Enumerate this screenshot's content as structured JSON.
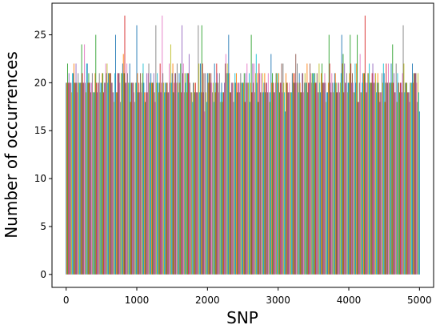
{
  "chart_data": {
    "type": "bar",
    "xlabel": "SNP",
    "ylabel": "Number of occurrences",
    "xlim": [
      -200,
      5200
    ],
    "ylim": [
      -1.35,
      28.3
    ],
    "xticks": [
      0,
      1000,
      2000,
      3000,
      4000,
      5000
    ],
    "yticks": [
      0,
      5,
      10,
      15,
      20,
      25
    ],
    "grid": false,
    "x_range": [
      0,
      5000
    ],
    "typical_value_range": [
      17,
      23
    ],
    "approx_mean": 20,
    "peaks": [
      {
        "x": 830,
        "y": 27
      },
      {
        "x": 1360,
        "y": 27
      },
      {
        "x": 4230,
        "y": 27
      },
      {
        "x": 1000,
        "y": 26
      },
      {
        "x": 1270,
        "y": 26
      },
      {
        "x": 1640,
        "y": 26
      },
      {
        "x": 1870,
        "y": 26
      },
      {
        "x": 1920,
        "y": 26
      },
      {
        "x": 4770,
        "y": 26
      },
      {
        "x": 420,
        "y": 25
      },
      {
        "x": 700,
        "y": 25
      },
      {
        "x": 2300,
        "y": 25
      },
      {
        "x": 2620,
        "y": 25
      },
      {
        "x": 3720,
        "y": 25
      },
      {
        "x": 3900,
        "y": 25
      },
      {
        "x": 4020,
        "y": 25
      },
      {
        "x": 4120,
        "y": 25
      },
      {
        "x": 4620,
        "y": 24
      },
      {
        "x": 220,
        "y": 24
      },
      {
        "x": 260,
        "y": 24
      }
    ],
    "end_value": {
      "x": 5000,
      "y": 17
    },
    "colors": [
      "#1f77b4",
      "#ff7f0e",
      "#2ca02c",
      "#d62728",
      "#9467bd",
      "#8c564b",
      "#e377c2",
      "#7f7f7f",
      "#bcbd22",
      "#17becf"
    ],
    "bar_style": "one thin bar per SNP, colors cycling through the default palette"
  }
}
